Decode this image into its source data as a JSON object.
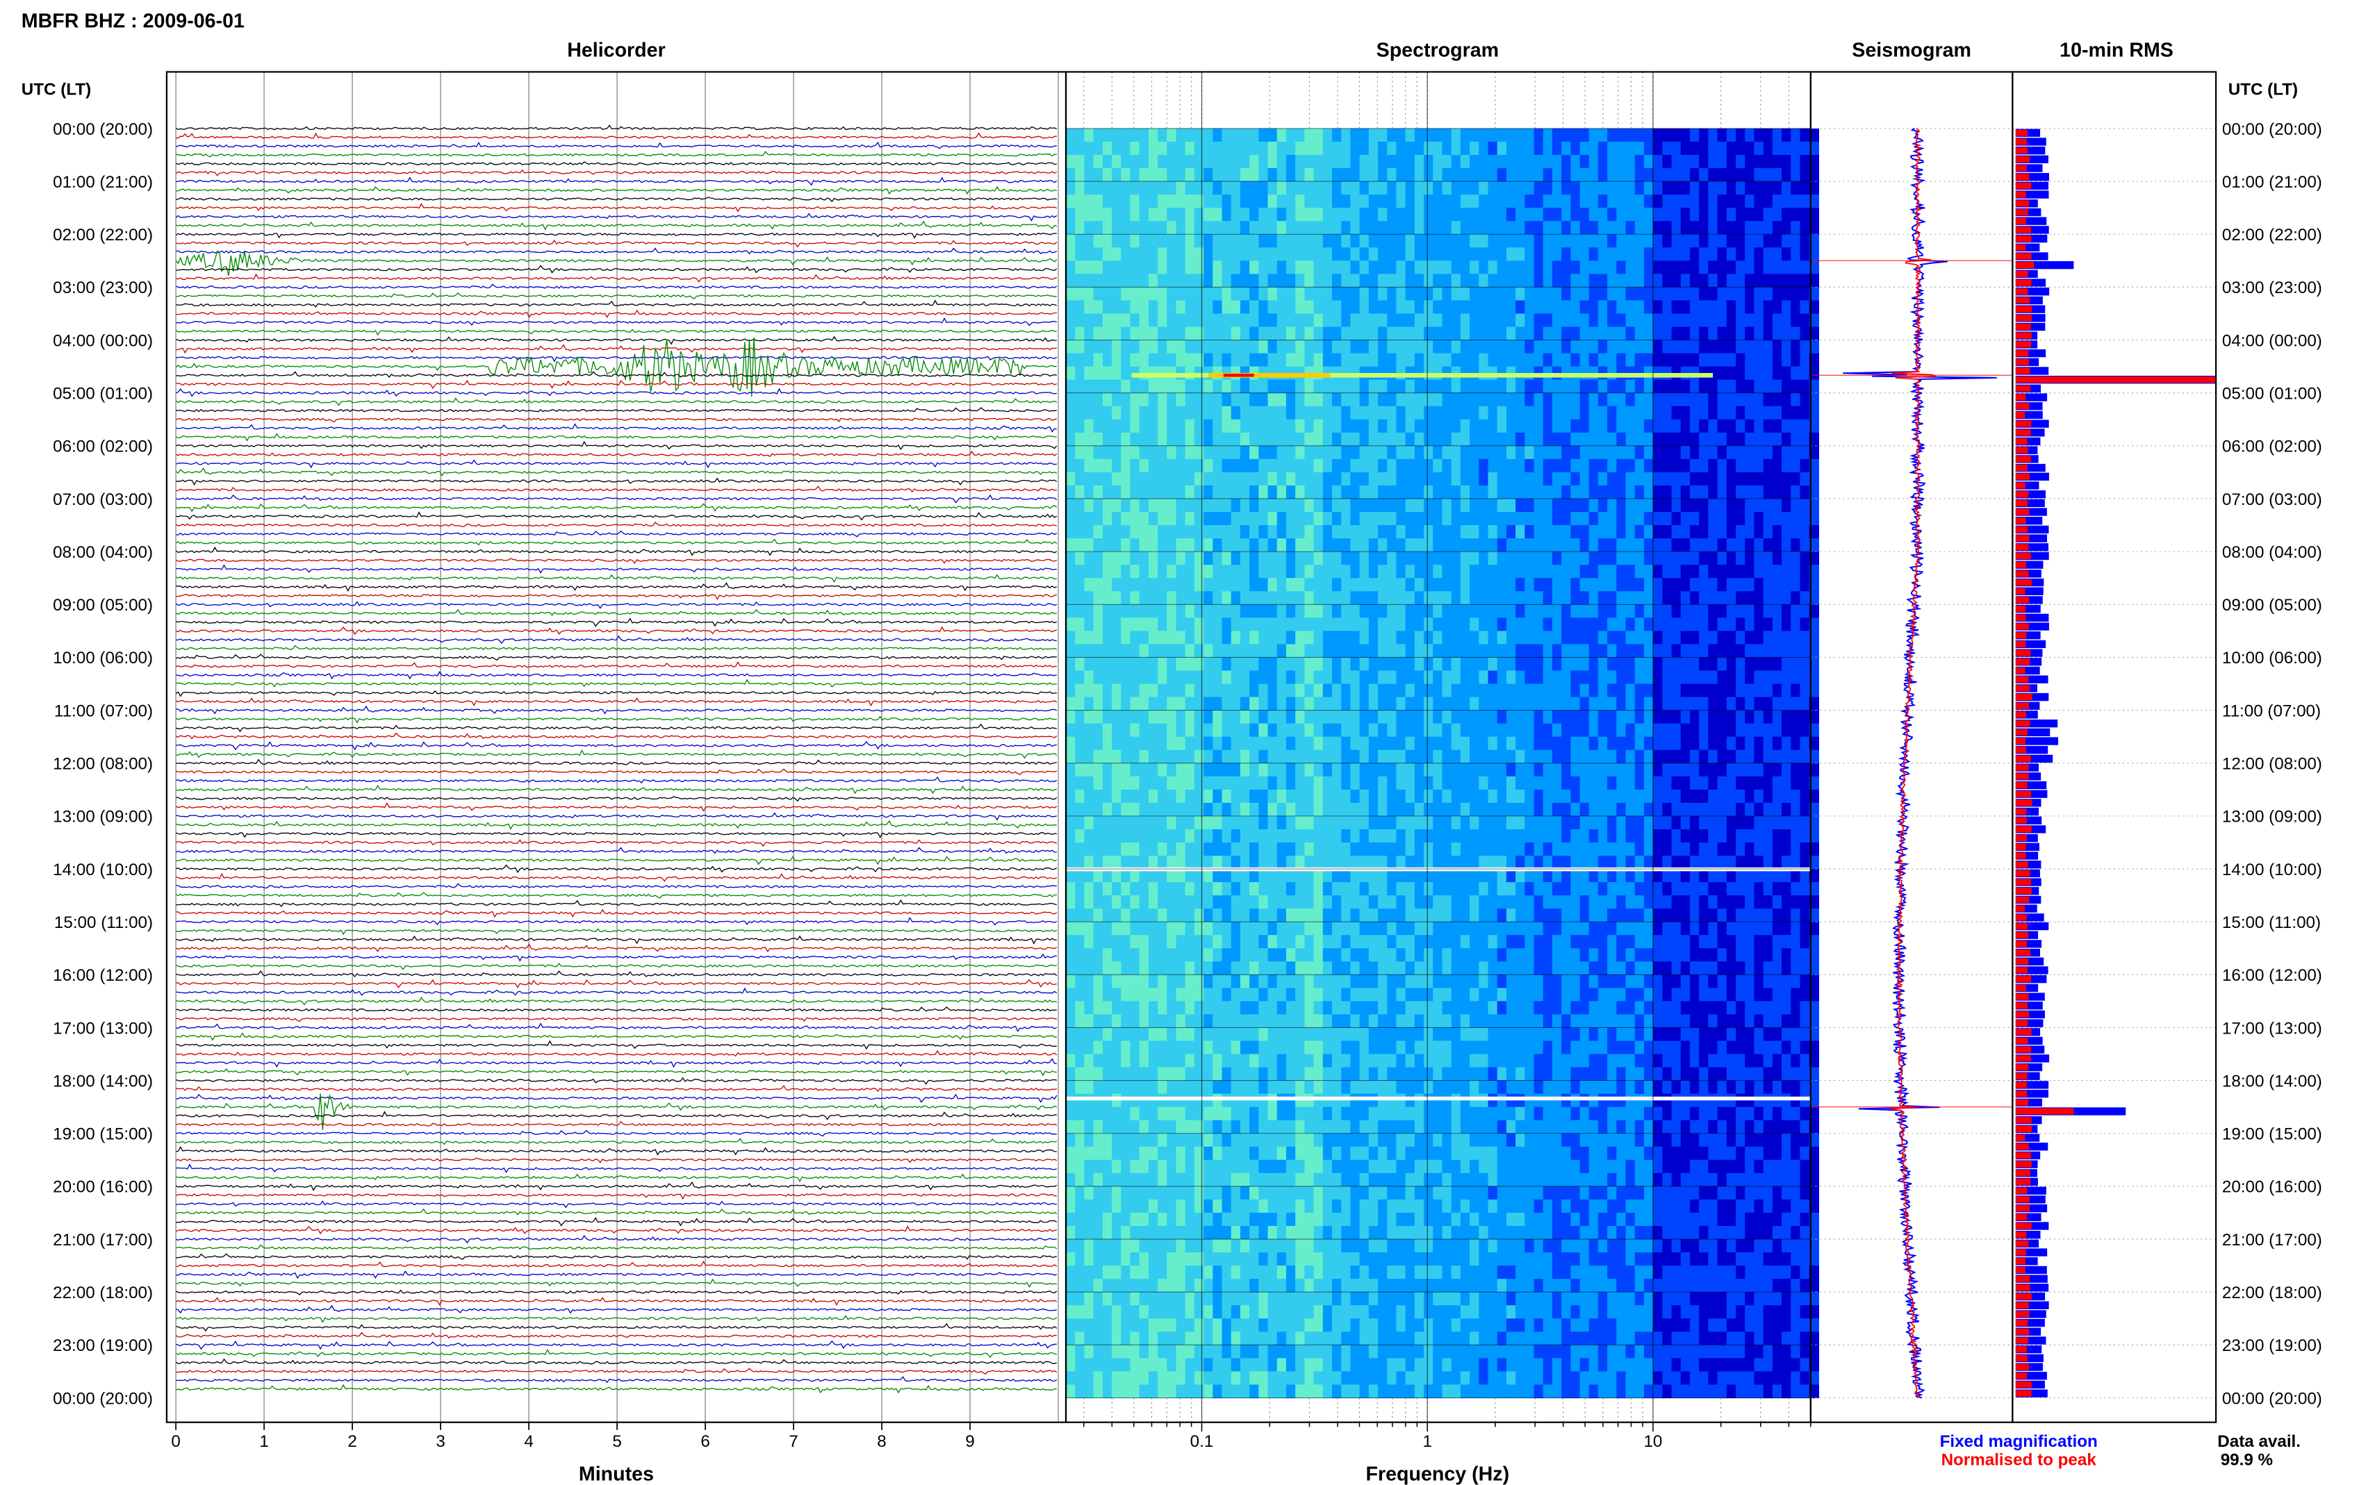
{
  "header": {
    "station": "MBFR BHZ : 2009-06-01",
    "panel_titles": [
      "Helicorder",
      "Spectrogram",
      "Seismogram",
      "10-min RMS"
    ],
    "left_axis_title": "UTC (LT)",
    "right_axis_title": "UTC (LT)"
  },
  "time_labels": [
    "00:00 (20:00)",
    "01:00 (21:00)",
    "02:00 (22:00)",
    "03:00 (23:00)",
    "04:00 (00:00)",
    "05:00 (01:00)",
    "06:00 (02:00)",
    "07:00 (03:00)",
    "08:00 (04:00)",
    "09:00 (05:00)",
    "10:00 (06:00)",
    "11:00 (07:00)",
    "12:00 (08:00)",
    "13:00 (09:00)",
    "14:00 (10:00)",
    "15:00 (11:00)",
    "16:00 (12:00)",
    "17:00 (13:00)",
    "18:00 (14:00)",
    "19:00 (15:00)",
    "20:00 (16:00)",
    "21:00 (17:00)",
    "22:00 (18:00)",
    "23:00 (19:00)",
    "00:00 (20:00)"
  ],
  "legend": {
    "fixed": "Fixed magnification",
    "normalised": "Normalised to peak",
    "fixed_color": "#0000ff",
    "normalised_color": "#ff0000"
  },
  "availability": {
    "label": "Data avail.",
    "value": "99.9 %"
  },
  "chart_data": [
    {
      "type": "line",
      "title": "Helicorder",
      "xlabel": "Minutes",
      "x_ticks": [
        "0",
        "1",
        "2",
        "3",
        "4",
        "5",
        "6",
        "7",
        "8",
        "9"
      ],
      "xlim": [
        0,
        10
      ],
      "lines_per_hour": 6,
      "line_colors": [
        "#000000",
        "#cc0000",
        "#0000cc",
        "#008800"
      ],
      "events": [
        {
          "time_utc": "02:30",
          "minute": 0.6,
          "amplitude": "medium",
          "color": "#008800"
        },
        {
          "time_utc": "04:30",
          "minute": 5.5,
          "amplitude": "large",
          "color": "#008800"
        },
        {
          "time_utc": "04:30",
          "minute": 6.5,
          "amplitude": "very large",
          "color": "#008800"
        },
        {
          "time_utc": "18:30",
          "minute": 1.6,
          "amplitude": "large",
          "color": "#000000"
        }
      ]
    },
    {
      "type": "heatmap",
      "title": "Spectrogram",
      "xlabel": "Frequency (Hz)",
      "x_scale": "log",
      "x_ticks": [
        "0.1",
        "1",
        "10"
      ],
      "xlim": [
        0.025,
        50
      ],
      "colormap": [
        "#0000cc",
        "#0044ff",
        "#0099ff",
        "#33ccee",
        "#66eecc",
        "#ccff66",
        "#ffcc00",
        "#ff0000"
      ],
      "gaps_utc": [
        "14:00",
        "18:20"
      ]
    },
    {
      "type": "line",
      "title": "Seismogram",
      "series": [
        {
          "name": "Fixed magnification",
          "color": "#0000ff"
        },
        {
          "name": "Normalised to peak",
          "color": "#ff0000"
        }
      ],
      "spikes_utc": [
        "02:30",
        "04:40",
        "18:30"
      ]
    },
    {
      "type": "bar",
      "title": "10-min RMS",
      "series": [
        {
          "name": "Fixed magnification",
          "color": "#0000ff"
        },
        {
          "name": "Normalised to peak",
          "color": "#ff0000"
        }
      ],
      "peaks_utc": [
        "02:30",
        "04:40",
        "18:30"
      ]
    }
  ]
}
